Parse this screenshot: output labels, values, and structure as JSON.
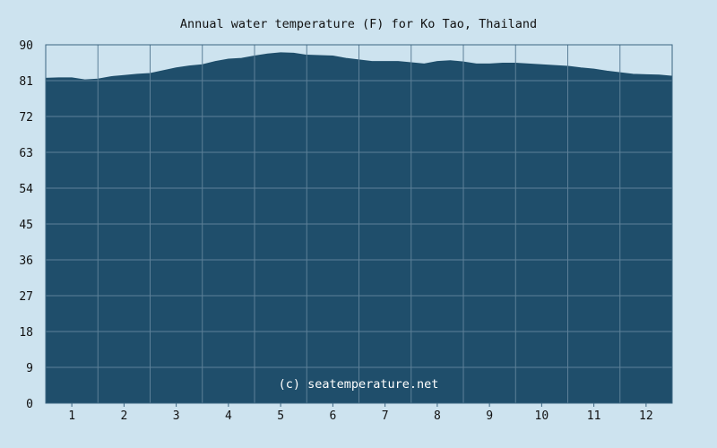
{
  "chart_data": {
    "type": "area",
    "title": "Annual water temperature (F) for Ko Tao, Thailand",
    "xlabel": "",
    "ylabel": "",
    "ylim": [
      0,
      90
    ],
    "yticks": [
      0,
      9,
      18,
      27,
      36,
      45,
      54,
      63,
      72,
      81,
      90
    ],
    "xlim": [
      0.5,
      12.5
    ],
    "xticks": [
      1,
      2,
      3,
      4,
      5,
      6,
      7,
      8,
      9,
      10,
      11,
      12
    ],
    "grid": true,
    "watermark": "(c) seatemperature.net",
    "colors": {
      "background": "#cde3ef",
      "fill": "#1f4e6b",
      "grid": "#5d8098",
      "axis": "#3b6580"
    },
    "series": [
      {
        "x": [
          0.5,
          0.75,
          1.0,
          1.25,
          1.5,
          1.75,
          2.0,
          2.25,
          2.5,
          2.75,
          3.0,
          3.25,
          3.5,
          3.75,
          4.0,
          4.25,
          4.5,
          4.75,
          5.0,
          5.25,
          5.5,
          5.75,
          6.0,
          6.25,
          6.5,
          6.75,
          7.0,
          7.25,
          7.5,
          7.75,
          8.0,
          8.25,
          8.5,
          8.75,
          9.0,
          9.25,
          9.5,
          9.75,
          10.0,
          10.25,
          10.5,
          10.75,
          11.0,
          11.25,
          11.5,
          11.75,
          12.0,
          12.25,
          12.5
        ],
        "values": [
          81.6,
          81.7,
          81.7,
          81.2,
          81.4,
          82.0,
          82.3,
          82.6,
          82.8,
          83.5,
          84.2,
          84.7,
          85.0,
          85.8,
          86.4,
          86.6,
          87.2,
          87.7,
          88.0,
          87.9,
          87.4,
          87.3,
          87.2,
          86.6,
          86.2,
          85.8,
          85.8,
          85.8,
          85.5,
          85.2,
          85.8,
          86.0,
          85.7,
          85.2,
          85.2,
          85.4,
          85.4,
          85.2,
          85.0,
          84.8,
          84.6,
          84.2,
          83.9,
          83.4,
          83.0,
          82.6,
          82.5,
          82.4,
          82.1
        ]
      }
    ]
  }
}
